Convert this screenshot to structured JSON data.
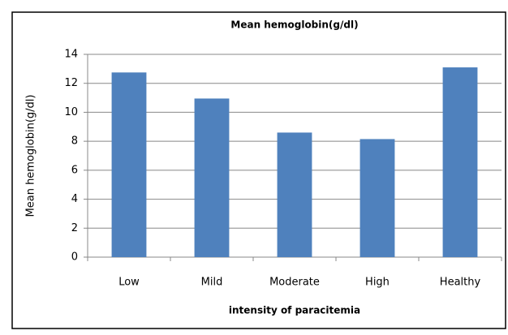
{
  "chart_data": {
    "type": "bar",
    "title": "Mean hemoglobin(g/dl)",
    "x_label": "intensity of paracitemia",
    "y_label": "Mean hemoglobin(g/dl)",
    "categories": [
      "Low",
      "Mild",
      "Moderate",
      "High",
      "Healthy"
    ],
    "values": [
      12.75,
      10.95,
      8.6,
      8.15,
      13.1
    ],
    "color": "#4f81bd",
    "ylim": [
      0,
      14
    ],
    "yticks": [
      0,
      2,
      4,
      6,
      8,
      10,
      12,
      14
    ],
    "grid": true
  }
}
